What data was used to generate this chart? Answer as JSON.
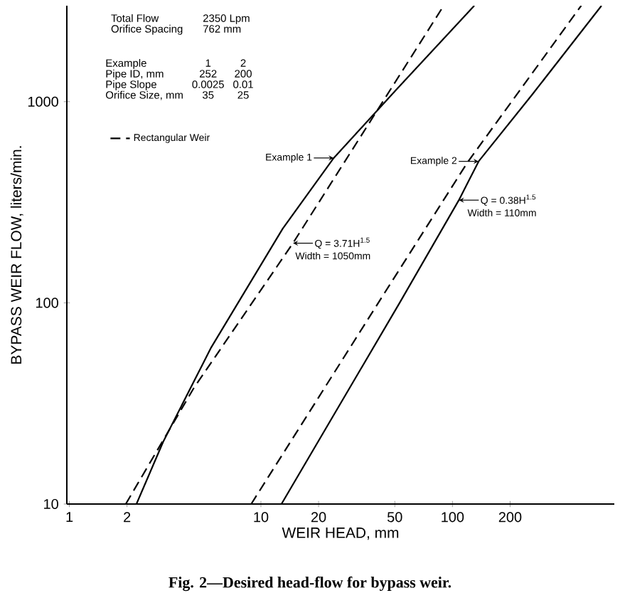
{
  "chart_data": {
    "type": "line",
    "title": "Fig. 2—Desired head-flow for bypass weir.",
    "xlabel": "WEIR HEAD, mm",
    "ylabel": "BYPASS WEIR FLOW, liters/min.",
    "log": "xy",
    "marker": "none",
    "legend": "top left",
    "xlim": [
      0.97,
      700
    ],
    "ylim": [
      10,
      3000
    ],
    "xticks": [
      1,
      2,
      10,
      20,
      50,
      100,
      200
    ],
    "yticks": [
      10,
      100,
      1000
    ],
    "series": [
      {
        "color": "#000000",
        "line_style": "solid",
        "x": [
          2.24,
          3.09,
          5.5,
          13,
          24,
          51,
          130
        ],
        "values": [
          10,
          20.4,
          60,
          234,
          525,
          1150,
          3000
        ]
      },
      {
        "name": "Rectangular Weir",
        "color": "#000000",
        "line_style": "dashed",
        "x": [
          1.97,
          4.47,
          14.7,
          90
        ],
        "values": [
          10,
          37.8,
          198,
          3000
        ]
      },
      {
        "color": "#000000",
        "line_style": "solid",
        "x": [
          12.8,
          53,
          108,
          137,
          261,
          600
        ],
        "values": [
          10,
          100,
          324,
          505,
          1085,
          3000
        ]
      },
      {
        "color": "#000000",
        "line_style": "dashed",
        "x": [
          8.9,
          45,
          120,
          470
        ],
        "values": [
          10,
          115,
          500,
          3000
        ]
      }
    ],
    "annotations": [
      "Total Flow",
      "2350 Lpm",
      "Orifice Spacing",
      "762 mm",
      "Example",
      "1",
      "2",
      "Pipe ID, mm",
      "252",
      "200",
      "Pipe Slope",
      "0.0025",
      "0.01",
      "Orifice Size, mm",
      "35",
      "25",
      {
        "text": "Example 1",
        "x": 24,
        "y": 525
      },
      {
        "text": "Q = 3.71H$^{1.5}$",
        "x": 14.7,
        "y": 198
      },
      "Width = 1050mm",
      {
        "text": "Example 2",
        "x": 137,
        "y": 505
      },
      {
        "text": "Q = 0.38H$^{1.5}$",
        "x": 108,
        "y": 324
      },
      "Width = 110mm"
    ]
  }
}
